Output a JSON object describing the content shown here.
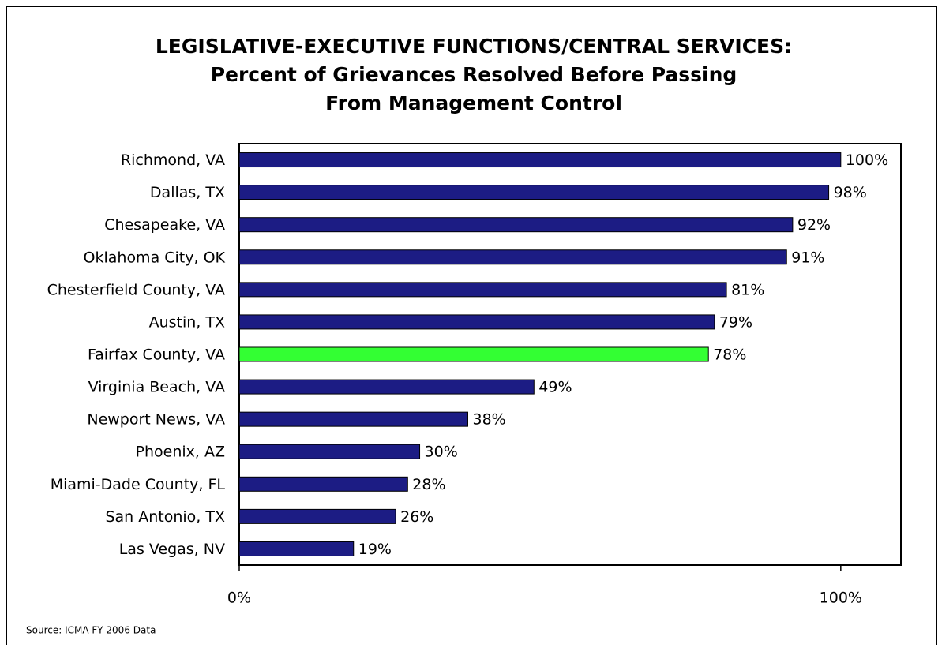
{
  "chart_data": {
    "type": "bar",
    "orientation": "horizontal",
    "title": [
      "LEGISLATIVE-EXECUTIVE FUNCTIONS/CENTRAL SERVICES:",
      "Percent of Grievances Resolved Before Passing",
      "From Management Control"
    ],
    "categories": [
      "Richmond, VA",
      "Dallas, TX",
      "Chesapeake, VA",
      "Oklahoma City, OK",
      "Chesterfield County, VA",
      "Austin, TX",
      "Fairfax County, VA",
      "Virginia Beach, VA",
      "Newport News, VA",
      "Phoenix, AZ",
      "Miami-Dade County, FL",
      "San Antonio, TX",
      "Las Vegas, NV"
    ],
    "values": [
      100,
      98,
      92,
      91,
      81,
      79,
      78,
      49,
      38,
      30,
      28,
      26,
      19
    ],
    "value_labels": [
      "100%",
      "98%",
      "92%",
      "91%",
      "81%",
      "79%",
      "78%",
      "49%",
      "38%",
      "30%",
      "28%",
      "26%",
      "19%"
    ],
    "colors": [
      "#1c1c84",
      "#1c1c84",
      "#1c1c84",
      "#1c1c84",
      "#1c1c84",
      "#1c1c84",
      "#33ff33",
      "#1c1c84",
      "#1c1c84",
      "#1c1c84",
      "#1c1c84",
      "#1c1c84",
      "#1c1c84"
    ],
    "xlim": [
      0,
      110
    ],
    "xticks": [
      {
        "value": 0,
        "label": "0%"
      },
      {
        "value": 100,
        "label": "100%"
      }
    ],
    "grid": false,
    "source": "Source: ICMA  FY 2006 Data"
  }
}
